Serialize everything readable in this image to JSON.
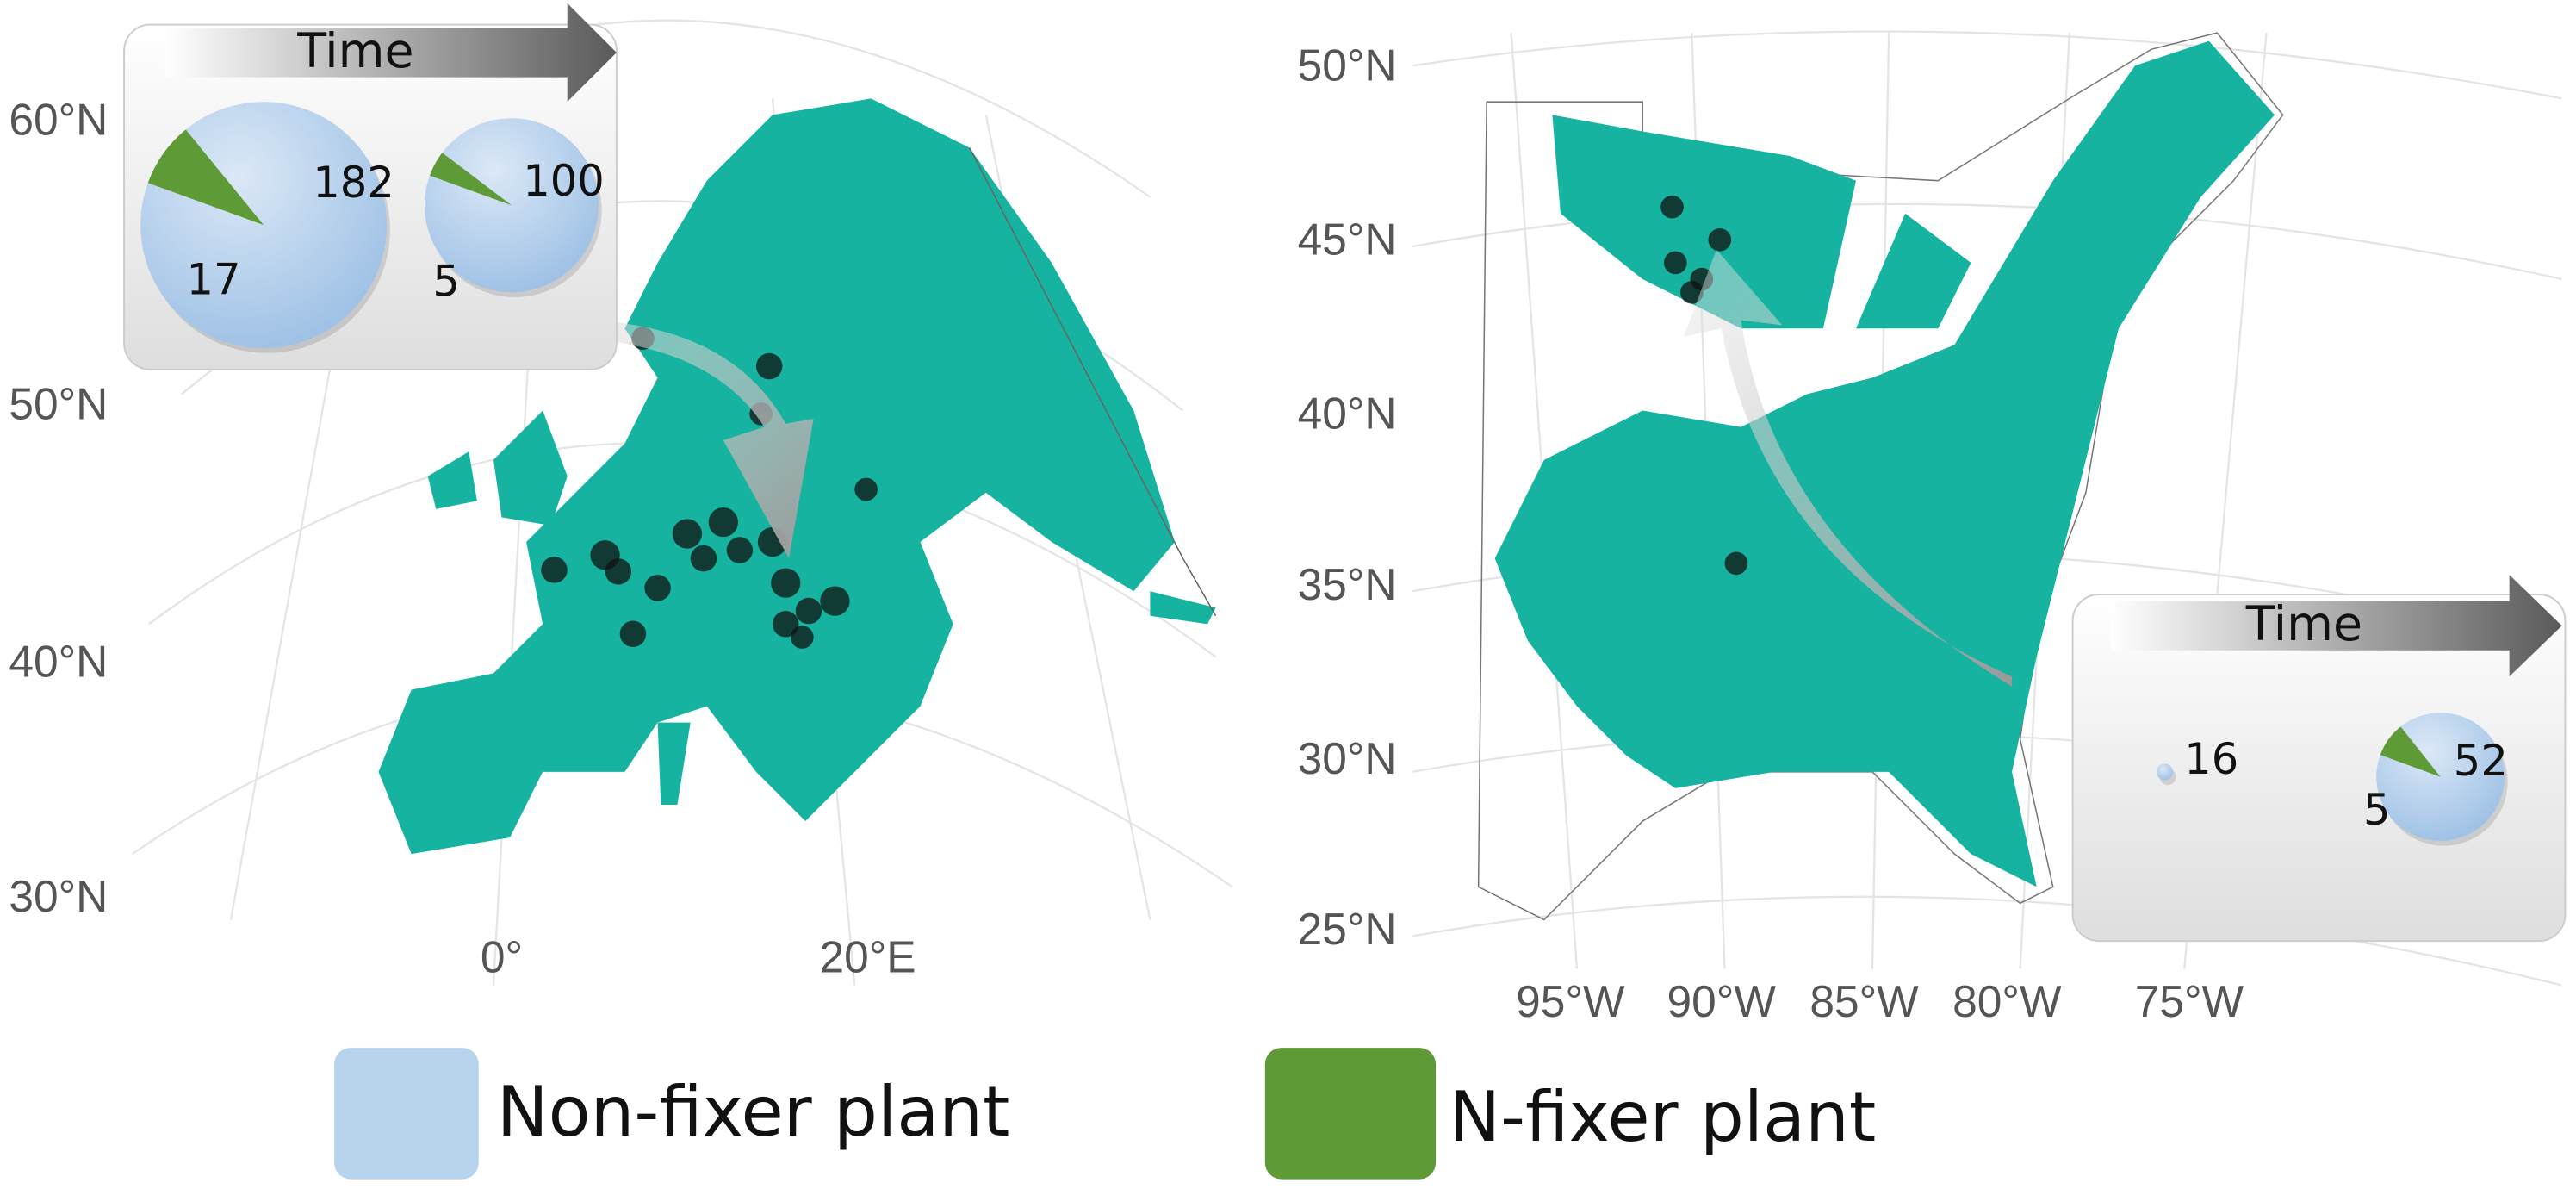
{
  "europe": {
    "lat_labels": [
      "60°N",
      "50°N",
      "40°N",
      "30°N"
    ],
    "lon_labels": [
      "0°",
      "20°E"
    ],
    "inset": {
      "title": "Time",
      "pies": [
        {
          "non_fixer": 182,
          "fixer": 17
        },
        {
          "non_fixer": 100,
          "fixer": 5
        }
      ]
    }
  },
  "north_america": {
    "lat_labels": [
      "50°N",
      "45°N",
      "40°N",
      "35°N",
      "30°N",
      "25°N"
    ],
    "lon_labels": [
      "95°W",
      "90°W",
      "85°W",
      "80°W",
      "75°W"
    ],
    "inset": {
      "title": "Time",
      "pies": [
        {
          "non_fixer": 16
        },
        {
          "non_fixer": 52,
          "fixer": 5
        }
      ]
    }
  },
  "legend": {
    "non_fixer": {
      "label": "Non-fixer plant",
      "color": "#b8d3ec"
    },
    "fixer": {
      "label": "N-fixer plant",
      "color": "#5e9a35"
    }
  }
}
